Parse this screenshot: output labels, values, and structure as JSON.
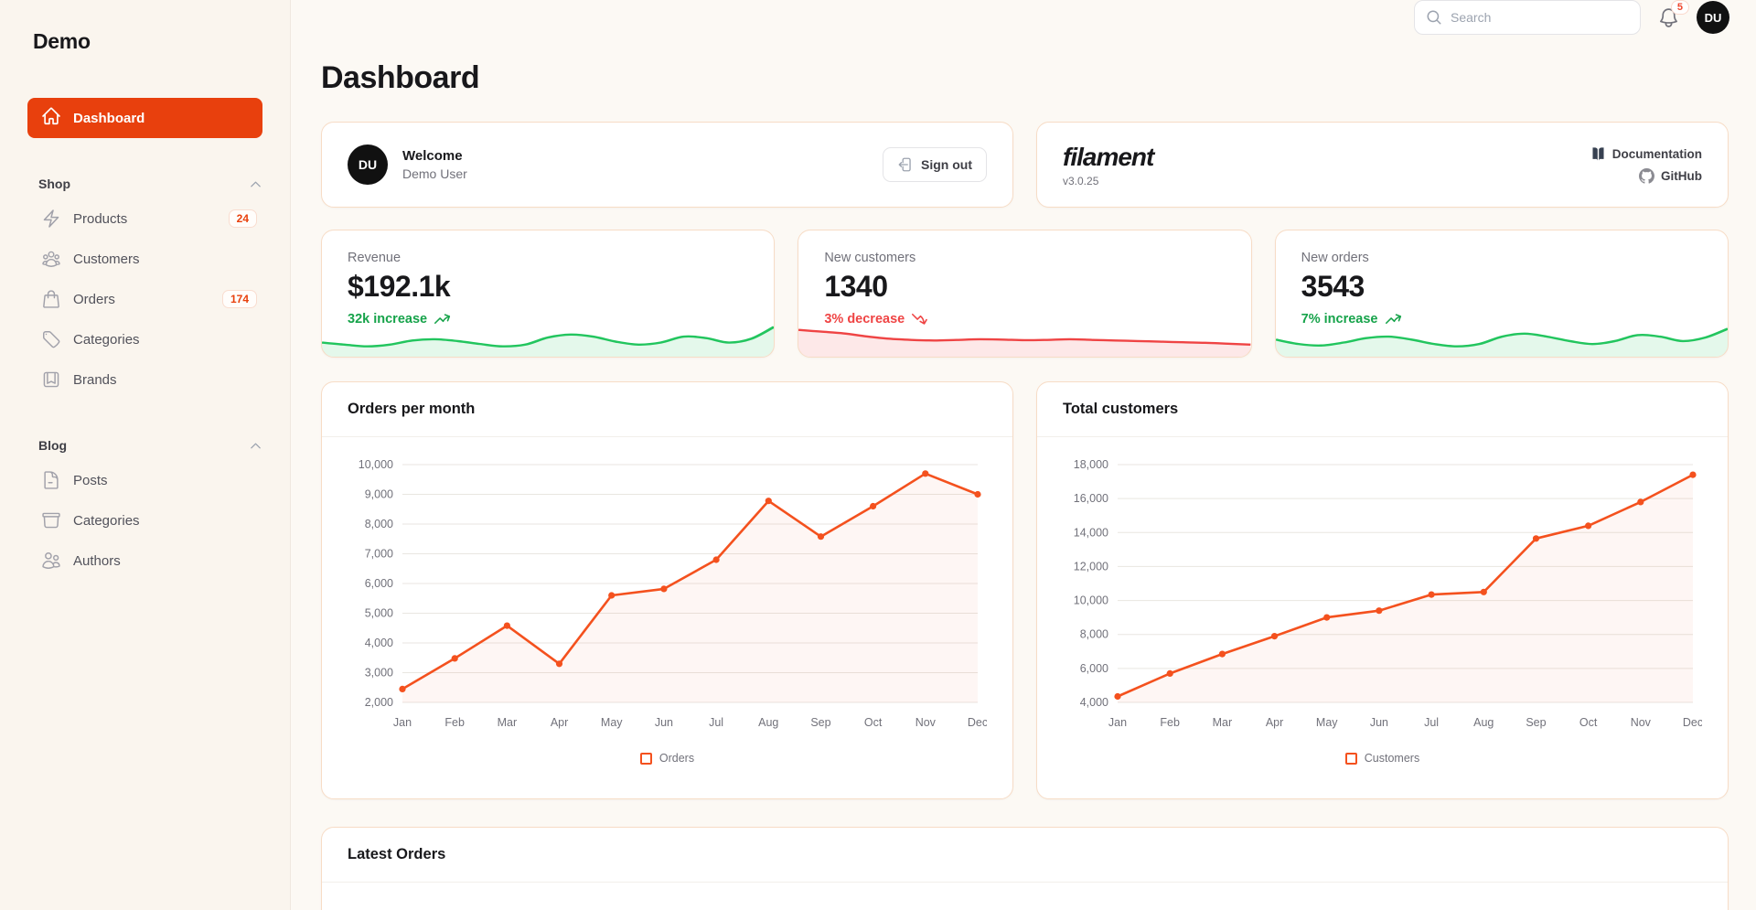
{
  "brand": "Demo",
  "topbar": {
    "search_placeholder": "Search",
    "notification_count": "5",
    "avatar_initials": "DU"
  },
  "sidebar": {
    "dashboard_label": "Dashboard",
    "sections": [
      {
        "label": "Shop",
        "items": [
          {
            "label": "Products",
            "badge": "24",
            "icon": "bolt-icon"
          },
          {
            "label": "Customers",
            "badge": "",
            "icon": "user-group-icon"
          },
          {
            "label": "Orders",
            "badge": "174",
            "icon": "shopping-bag-icon"
          },
          {
            "label": "Categories",
            "badge": "",
            "icon": "tag-icon"
          },
          {
            "label": "Brands",
            "badge": "",
            "icon": "bookmark-icon"
          }
        ]
      },
      {
        "label": "Blog",
        "items": [
          {
            "label": "Posts",
            "badge": "",
            "icon": "document-icon"
          },
          {
            "label": "Categories",
            "badge": "",
            "icon": "archive-box-icon"
          },
          {
            "label": "Authors",
            "badge": "",
            "icon": "users-icon"
          }
        ]
      }
    ]
  },
  "page_title": "Dashboard",
  "welcome_card": {
    "title": "Welcome",
    "subtitle": "Demo User",
    "avatar_initials": "DU",
    "sign_out_label": "Sign out"
  },
  "filament_card": {
    "logo_text": "filament",
    "version": "v3.0.25",
    "documentation_label": "Documentation",
    "github_label": "GitHub"
  },
  "stats": [
    {
      "label": "Revenue",
      "value": "$192.1k",
      "delta": "32k increase",
      "trend": "up",
      "delta_color": "#16a34a",
      "spark_color": "#22c55e",
      "sparkline": [
        0.35,
        0.28,
        0.22,
        0.28,
        0.42,
        0.46,
        0.4,
        0.3,
        0.22,
        0.28,
        0.52,
        0.62,
        0.55,
        0.38,
        0.28,
        0.35,
        0.55,
        0.5,
        0.35,
        0.48,
        0.88
      ]
    },
    {
      "label": "New customers",
      "value": "1340",
      "delta": "3% decrease",
      "trend": "down",
      "delta_color": "#ef4444",
      "spark_color": "#ef4444",
      "sparkline": [
        0.78,
        0.72,
        0.66,
        0.56,
        0.48,
        0.44,
        0.42,
        0.44,
        0.46,
        0.45,
        0.43,
        0.44,
        0.46,
        0.44,
        0.42,
        0.4,
        0.38,
        0.36,
        0.34,
        0.31,
        0.28
      ]
    },
    {
      "label": "New orders",
      "value": "3543",
      "delta": "7% increase",
      "trend": "up",
      "delta_color": "#16a34a",
      "spark_color": "#22c55e",
      "sparkline": [
        0.45,
        0.3,
        0.25,
        0.35,
        0.5,
        0.55,
        0.45,
        0.3,
        0.22,
        0.3,
        0.55,
        0.65,
        0.55,
        0.4,
        0.3,
        0.4,
        0.6,
        0.55,
        0.4,
        0.52,
        0.82
      ]
    }
  ],
  "latest_orders_title": "Latest Orders",
  "colors": {
    "accent": "#e8400d",
    "chart_line": "#f4511e",
    "positive": "#16a34a",
    "negative": "#ef4444",
    "card_border": "#f7dcc6",
    "background": "#fcf9f4"
  },
  "chart_data": [
    {
      "type": "line",
      "title": "Orders per month",
      "categories": [
        "Jan",
        "Feb",
        "Mar",
        "Apr",
        "May",
        "Jun",
        "Jul",
        "Aug",
        "Sep",
        "Oct",
        "Nov",
        "Dec"
      ],
      "series": [
        {
          "name": "Orders",
          "values": [
            2450,
            3480,
            4580,
            3300,
            5600,
            5820,
            6800,
            8780,
            7580,
            8600,
            9700,
            9000
          ]
        }
      ],
      "ylim": [
        2000,
        10000
      ],
      "ytick_step": 1000,
      "color": "#f4511e",
      "grid": true,
      "legend_position": "bottom"
    },
    {
      "type": "line",
      "title": "Total customers",
      "categories": [
        "Jan",
        "Feb",
        "Mar",
        "Apr",
        "May",
        "Jun",
        "Jul",
        "Aug",
        "Sep",
        "Oct",
        "Nov",
        "Dec"
      ],
      "series": [
        {
          "name": "Customers",
          "values": [
            4350,
            5700,
            6850,
            7900,
            9000,
            9400,
            10350,
            10500,
            13650,
            14400,
            15800,
            17400
          ]
        }
      ],
      "ylim": [
        4000,
        18000
      ],
      "ytick_step": 2000,
      "color": "#f4511e",
      "grid": true,
      "legend_position": "bottom"
    }
  ]
}
